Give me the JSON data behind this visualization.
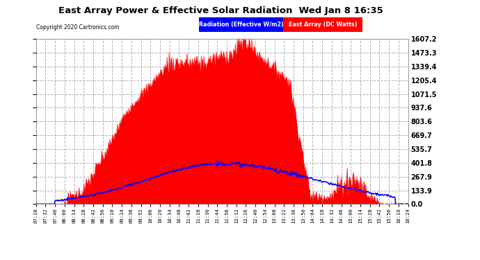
{
  "title": "East Array Power & Effective Solar Radiation  Wed Jan 8 16:35",
  "copyright": "Copyright 2020 Cartronics.com",
  "legend_labels": [
    "Radiation (Effective W/m2)",
    "East Array (DC Watts)"
  ],
  "yticks": [
    0.0,
    133.9,
    267.9,
    401.8,
    535.7,
    669.7,
    803.6,
    937.6,
    1071.5,
    1205.4,
    1339.4,
    1473.3,
    1607.2
  ],
  "ymax": 1607.2,
  "ymin": 0.0,
  "bg_color": "#ffffff",
  "grid_color": "#b0b0b0",
  "xtick_labels": [
    "07:18",
    "07:32",
    "07:46",
    "08:00",
    "08:14",
    "08:28",
    "08:42",
    "08:56",
    "09:10",
    "09:24",
    "09:38",
    "09:52",
    "10:06",
    "10:20",
    "10:34",
    "10:48",
    "11:02",
    "11:16",
    "11:30",
    "11:44",
    "11:58",
    "12:12",
    "12:26",
    "12:40",
    "12:54",
    "13:08",
    "13:22",
    "13:36",
    "13:50",
    "14:04",
    "14:18",
    "14:32",
    "14:46",
    "15:00",
    "15:14",
    "15:28",
    "15:42",
    "15:56",
    "16:10",
    "16:24"
  ]
}
